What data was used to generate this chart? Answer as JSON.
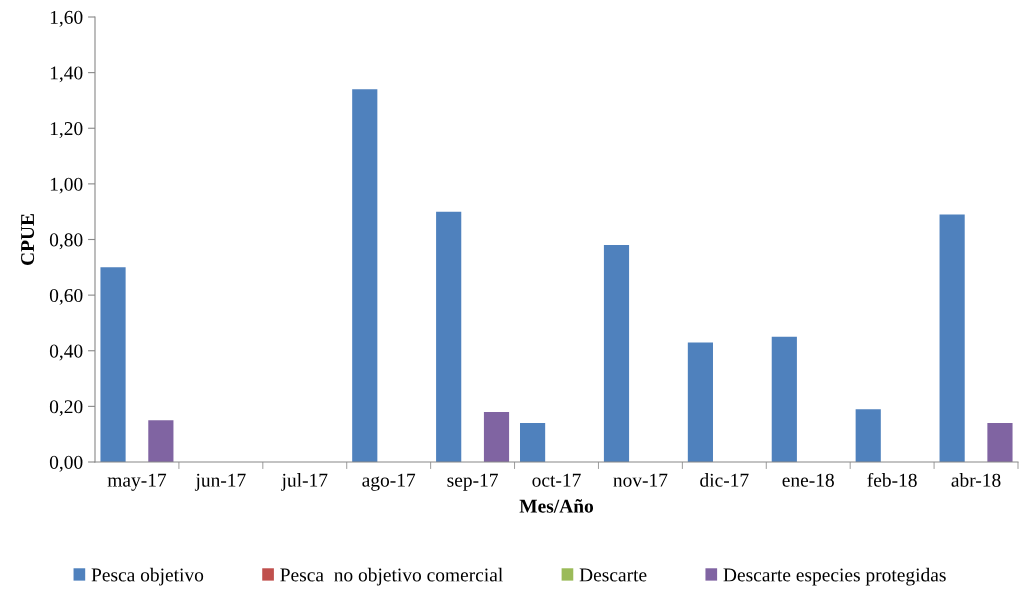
{
  "chart_data": {
    "type": "bar",
    "xlabel": "Mes/Año",
    "ylabel": "CPUE",
    "categories": [
      "may-17",
      "jun-17",
      "jul-17",
      "ago-17",
      "sep-17",
      "oct-17",
      "nov-17",
      "dic-17",
      "ene-18",
      "feb-18",
      "abr-18"
    ],
    "series": [
      {
        "name": "Pesca objetivo",
        "color": "#4f81bd",
        "values": [
          0.7,
          0,
          0,
          1.34,
          0.9,
          0.14,
          0.78,
          0.43,
          0.45,
          0.19,
          0.89
        ]
      },
      {
        "name": "Pesca  no objetivo comercial",
        "color": "#c0504d",
        "values": [
          0,
          0,
          0,
          0,
          0,
          0,
          0,
          0,
          0,
          0,
          0
        ]
      },
      {
        "name": "Descarte",
        "color": "#9bbb59",
        "values": [
          0,
          0,
          0,
          0,
          0,
          0,
          0,
          0,
          0,
          0,
          0
        ]
      },
      {
        "name": "Descarte especies protegidas",
        "color": "#8064a2",
        "values": [
          0.15,
          0,
          0,
          0,
          0.18,
          0,
          0,
          0,
          0,
          0,
          0.14
        ]
      }
    ],
    "ylim": [
      0,
      1.6
    ],
    "yticks": [
      {
        "value": 0,
        "label": "0,00"
      },
      {
        "value": 0.2,
        "label": "0,20"
      },
      {
        "value": 0.4,
        "label": "0,40"
      },
      {
        "value": 0.6,
        "label": "0,60"
      },
      {
        "value": 0.8,
        "label": "0,80"
      },
      {
        "value": 1.0,
        "label": "1,00"
      },
      {
        "value": 1.2,
        "label": "1,20"
      },
      {
        "value": 1.4,
        "label": "1,40"
      },
      {
        "value": 1.6,
        "label": "1,60"
      }
    ],
    "grid": false,
    "legend": "bottom"
  }
}
